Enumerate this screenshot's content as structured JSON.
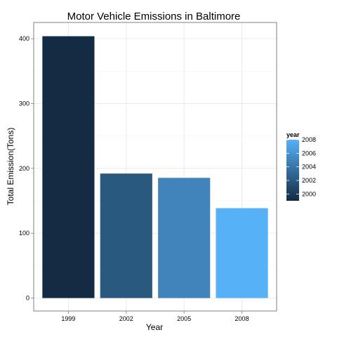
{
  "chart_data": {
    "type": "bar",
    "title": "Motor Vehicle Emissions in Baltimore",
    "xlabel": "Year",
    "ylabel": "Total Emission(Tons)",
    "categories": [
      "1999",
      "2002",
      "2005",
      "2008"
    ],
    "values": [
      403.8,
      192.0,
      185.4,
      138.6
    ],
    "ylim": [
      -20,
      425
    ],
    "yticks": [
      0,
      100,
      200,
      300,
      400
    ],
    "grid": true,
    "legend": {
      "title": "year",
      "placement": "right",
      "type": "continuous",
      "range": [
        1999,
        2008
      ],
      "ticks": [
        "2000",
        "2002",
        "2004",
        "2006",
        "2008"
      ],
      "color_low": "#132B43",
      "color_high": "#56B1F7"
    }
  }
}
